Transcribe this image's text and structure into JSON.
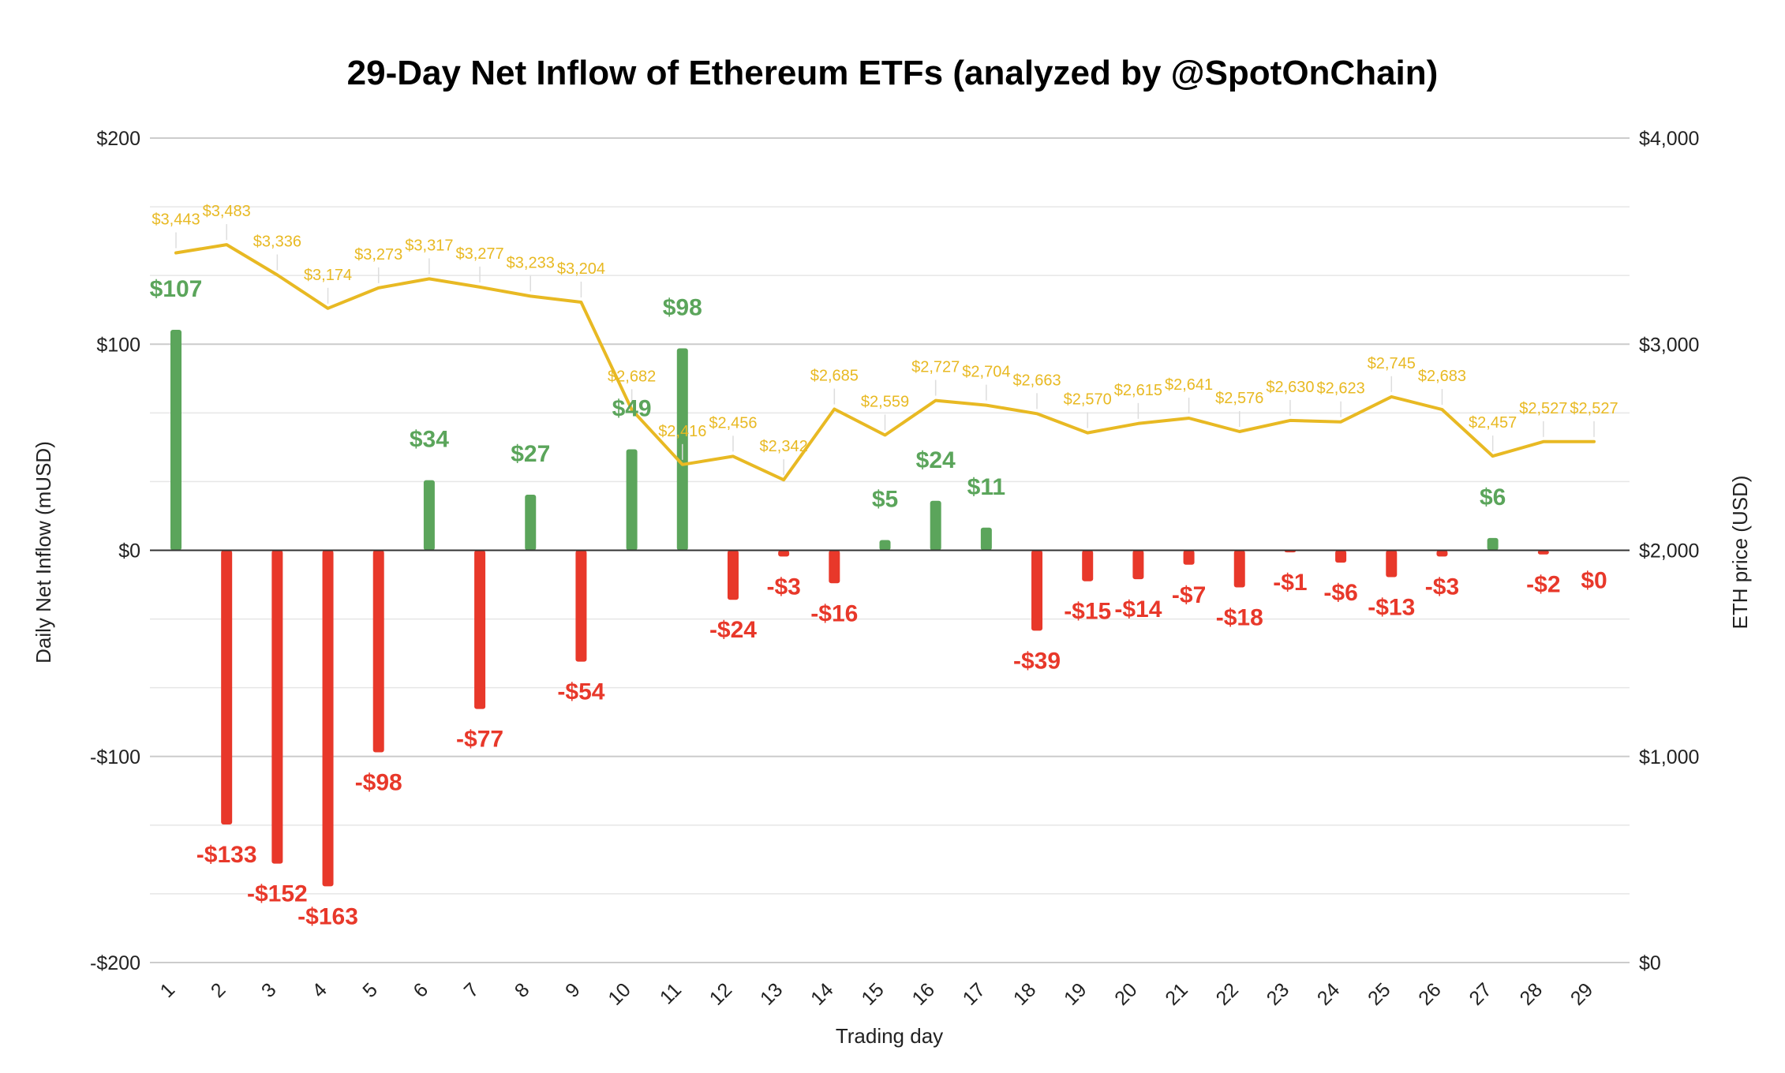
{
  "chart_data": {
    "type": "bar",
    "title": "29-Day Net Inflow of Ethereum ETFs (analyzed by @SpotOnChain)",
    "xlabel": "Trading day",
    "ylabel": "Daily Net Inflow (mUSD)",
    "y2label": "ETH price (USD)",
    "categories": [
      "1",
      "2",
      "3",
      "4",
      "5",
      "6",
      "7",
      "8",
      "9",
      "10",
      "11",
      "12",
      "13",
      "14",
      "15",
      "16",
      "17",
      "18",
      "19",
      "20",
      "21",
      "22",
      "23",
      "24",
      "25",
      "26",
      "27",
      "28",
      "29"
    ],
    "series": [
      {
        "name": "Daily Net Inflow (mUSD)",
        "type": "bar",
        "axis": "left",
        "values": [
          107,
          -133,
          -152,
          -163,
          -98,
          34,
          -77,
          27,
          -54,
          49,
          98,
          -24,
          -3,
          -16,
          5,
          24,
          11,
          -39,
          -15,
          -14,
          -7,
          -18,
          -1,
          -6,
          -13,
          -3,
          6,
          -2,
          0
        ],
        "labels": [
          "$107",
          "-$133",
          "-$152",
          "-$163",
          "-$98",
          "$34",
          "-$77",
          "$27",
          "-$54",
          "$49",
          "$98",
          "-$24",
          "-$3",
          "-$16",
          "$5",
          "$24",
          "$11",
          "-$39",
          "-$15",
          "-$14",
          "-$7",
          "-$18",
          "-$1",
          "-$6",
          "-$13",
          "-$3",
          "$6",
          "-$2",
          "$0"
        ]
      },
      {
        "name": "ETH price (USD)",
        "type": "line",
        "axis": "right",
        "values": [
          3443,
          3483,
          3336,
          3174,
          3273,
          3317,
          3277,
          3233,
          3204,
          2682,
          2416,
          2456,
          2342,
          2685,
          2559,
          2727,
          2704,
          2663,
          2570,
          2615,
          2641,
          2576,
          2630,
          2623,
          2745,
          2683,
          2457,
          2527,
          2527
        ],
        "labels": [
          "$3,443",
          "$3,483",
          "$3,336",
          "$3,174",
          "$3,273",
          "$3,317",
          "$3,277",
          "$3,233",
          "$3,204",
          "$2,682",
          "$2,416",
          "$2,456",
          "$2,342",
          "$2,685",
          "$2,559",
          "$2,727",
          "$2,704",
          "$2,663",
          "$2,570",
          "$2,615",
          "$2,641",
          "$2,576",
          "$2,630",
          "$2,623",
          "$2,745",
          "$2,683",
          "$2,457",
          "$2,527",
          "$2,527"
        ]
      }
    ],
    "ylim": [
      -200,
      200
    ],
    "y2lim": [
      0,
      4000
    ],
    "yticks": [
      "$200",
      "$100",
      "$0",
      "-$100",
      "-$200"
    ],
    "y2ticks": [
      "$4,000",
      "$3,000",
      "$2,000",
      "$1,000",
      "$0"
    ],
    "grid": true,
    "legend": "none",
    "colors": {
      "positive": "#5BA55B",
      "negative": "#E8382A",
      "price_line": "#E8B923",
      "grid": "#DDDDDD",
      "baseline": "#333333"
    }
  }
}
